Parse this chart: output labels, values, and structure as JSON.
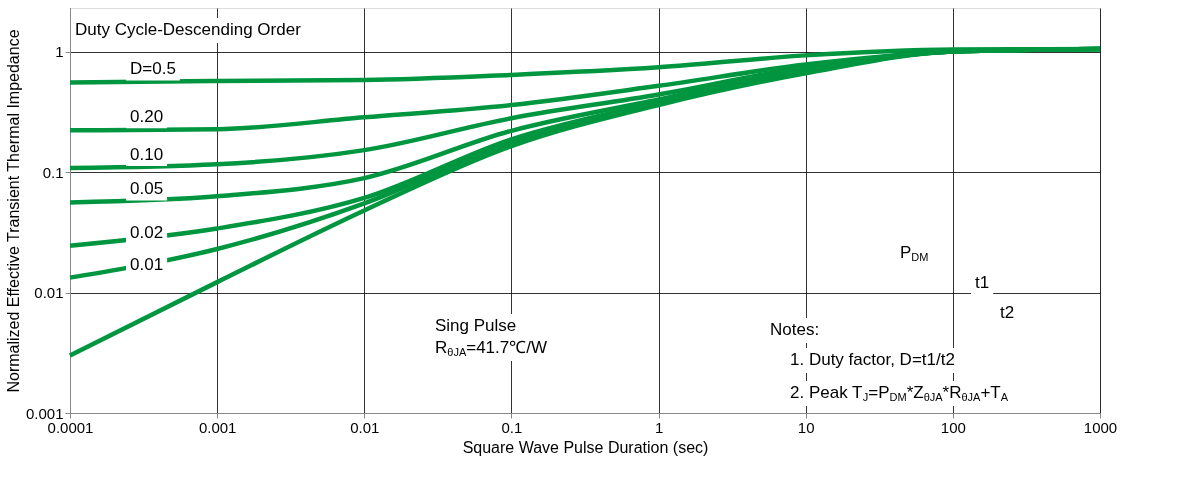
{
  "chart_data": {
    "type": "line",
    "xlabel": "Square Wave Pulse Duration (sec)",
    "ylabel": "Normalized Effective Transient Thermal Impedance",
    "x": [
      0.0001,
      0.001,
      0.01,
      0.1,
      1,
      10,
      100,
      1000
    ],
    "series": [
      {
        "name": "D=0.5",
        "color": "#009640",
        "values": [
          0.555,
          0.57,
          0.58,
          0.64,
          0.74,
          0.93,
          1.04,
          1.05
        ]
      },
      {
        "name": "0.20",
        "color": "#009640",
        "values": [
          0.222,
          0.227,
          0.285,
          0.36,
          0.52,
          0.78,
          1.0,
          1.05
        ]
      },
      {
        "name": "0.10",
        "color": "#009640",
        "values": [
          0.108,
          0.116,
          0.152,
          0.28,
          0.44,
          0.74,
          1.0,
          1.05
        ]
      },
      {
        "name": "0.05",
        "color": "#009640",
        "values": [
          0.056,
          0.063,
          0.089,
          0.22,
          0.4,
          0.72,
          1.0,
          1.05
        ]
      },
      {
        "name": "0.02",
        "color": "#009640",
        "values": [
          0.0245,
          0.034,
          0.061,
          0.187,
          0.38,
          0.69,
          1.0,
          1.05
        ]
      },
      {
        "name": "0.01",
        "color": "#009640",
        "values": [
          0.0133,
          0.023,
          0.055,
          0.177,
          0.37,
          0.68,
          1.0,
          1.05
        ]
      },
      {
        "color": "#009640",
        "values": [
          0.003,
          0.0122,
          0.048,
          0.164,
          0.36,
          0.66,
          1.0,
          1.05
        ]
      }
    ],
    "log": "xy",
    "xlim": [
      0.0001,
      1000
    ],
    "ylim": [
      0.001,
      2.3
    ],
    "xticks": [
      0.0001,
      0.001,
      0.01,
      0.1,
      1,
      10,
      100,
      {
        "value": 1000,
        "label": "1000"
      }
    ],
    "yticks": [
      0.001,
      0.01,
      0.1,
      1
    ],
    "grid": true,
    "legend": false,
    "annotations": [
      "Duty Cycle-Descending Order",
      "Sing Pulse",
      "R$_{θJA}$=41.7℃/W",
      "Notes:",
      "1. Duty factor, D=t1/t2",
      "2. Peak T$_{J}$=P$_{DM}$*Z$_{θJA}$*R$_{θJA}$+T$_{A}$",
      "P$_{DM}$",
      "t1",
      "t2"
    ]
  }
}
